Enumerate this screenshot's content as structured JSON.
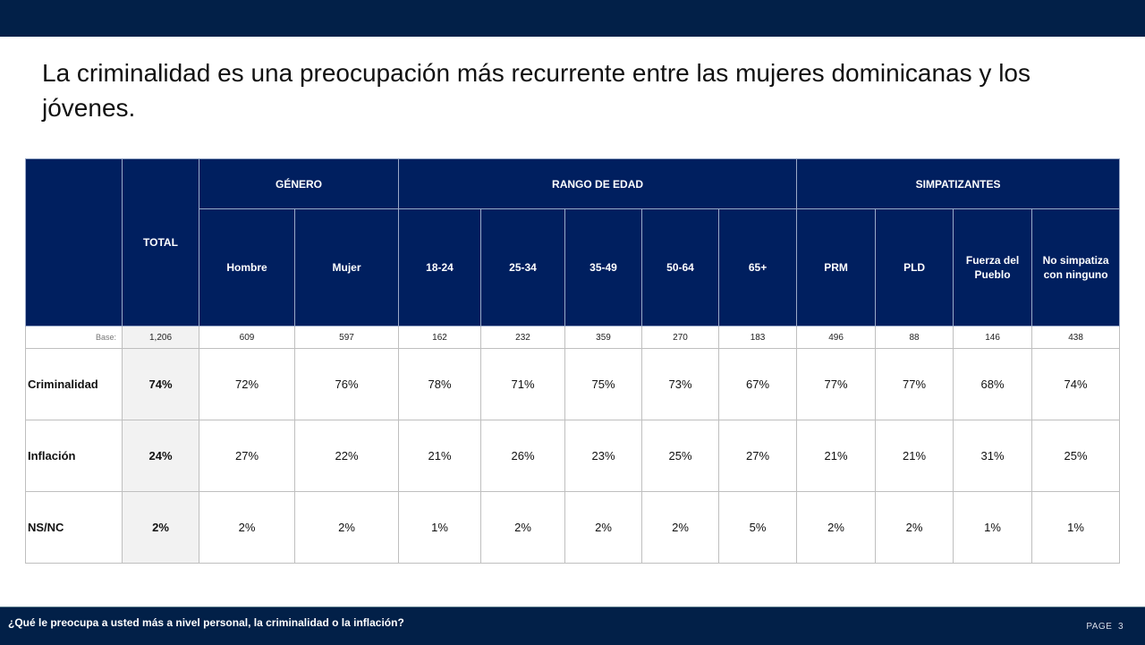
{
  "header": {
    "title": "La criminalidad es una preocupación más recurrente entre las mujeres dominicanas y los jóvenes."
  },
  "footer": {
    "question": "¿Qué le preocupa a usted más a nivel personal, la criminalidad o la inflación?",
    "page_label": "PAGE",
    "page_number": "3"
  },
  "colors": {
    "header_navy": "#022048",
    "table_header": "#001f5f",
    "total_column_bg": "#f2f2f2",
    "border": "#bfbfbf"
  },
  "chart_data": {
    "type": "table",
    "title": "La criminalidad es una preocupación más recurrente entre las mujeres dominicanas y los jóvenes.",
    "total_label": "TOTAL",
    "groups": [
      {
        "label": "GÉNERO",
        "columns": [
          "Hombre",
          "Mujer"
        ]
      },
      {
        "label": "RANGO DE EDAD",
        "columns": [
          "18-24",
          "25-34",
          "35-49",
          "50-64",
          "65+"
        ]
      },
      {
        "label": "SIMPATIZANTES",
        "columns": [
          "PRM",
          "PLD",
          "Fuerza del Pueblo",
          "No simpatiza con ninguno"
        ]
      }
    ],
    "columns": [
      "Hombre",
      "Mujer",
      "18-24",
      "25-34",
      "35-49",
      "50-64",
      "65+",
      "PRM",
      "PLD",
      "Fuerza del Pueblo",
      "No simpatiza con ninguno"
    ],
    "base": {
      "label": "Base:",
      "total": "1,206",
      "values": [
        "609",
        "597",
        "162",
        "232",
        "359",
        "270",
        "183",
        "496",
        "88",
        "146",
        "438"
      ]
    },
    "rows": [
      {
        "label": "Criminalidad",
        "total": "74%",
        "values": [
          "72%",
          "76%",
          "78%",
          "71%",
          "75%",
          "73%",
          "67%",
          "77%",
          "77%",
          "68%",
          "74%"
        ]
      },
      {
        "label": "Inflación",
        "total": "24%",
        "values": [
          "27%",
          "22%",
          "21%",
          "26%",
          "23%",
          "25%",
          "27%",
          "21%",
          "21%",
          "31%",
          "25%"
        ]
      },
      {
        "label": "NS/NC",
        "total": "2%",
        "values": [
          "2%",
          "2%",
          "1%",
          "2%",
          "2%",
          "2%",
          "5%",
          "2%",
          "2%",
          "1%",
          "1%"
        ]
      }
    ]
  }
}
